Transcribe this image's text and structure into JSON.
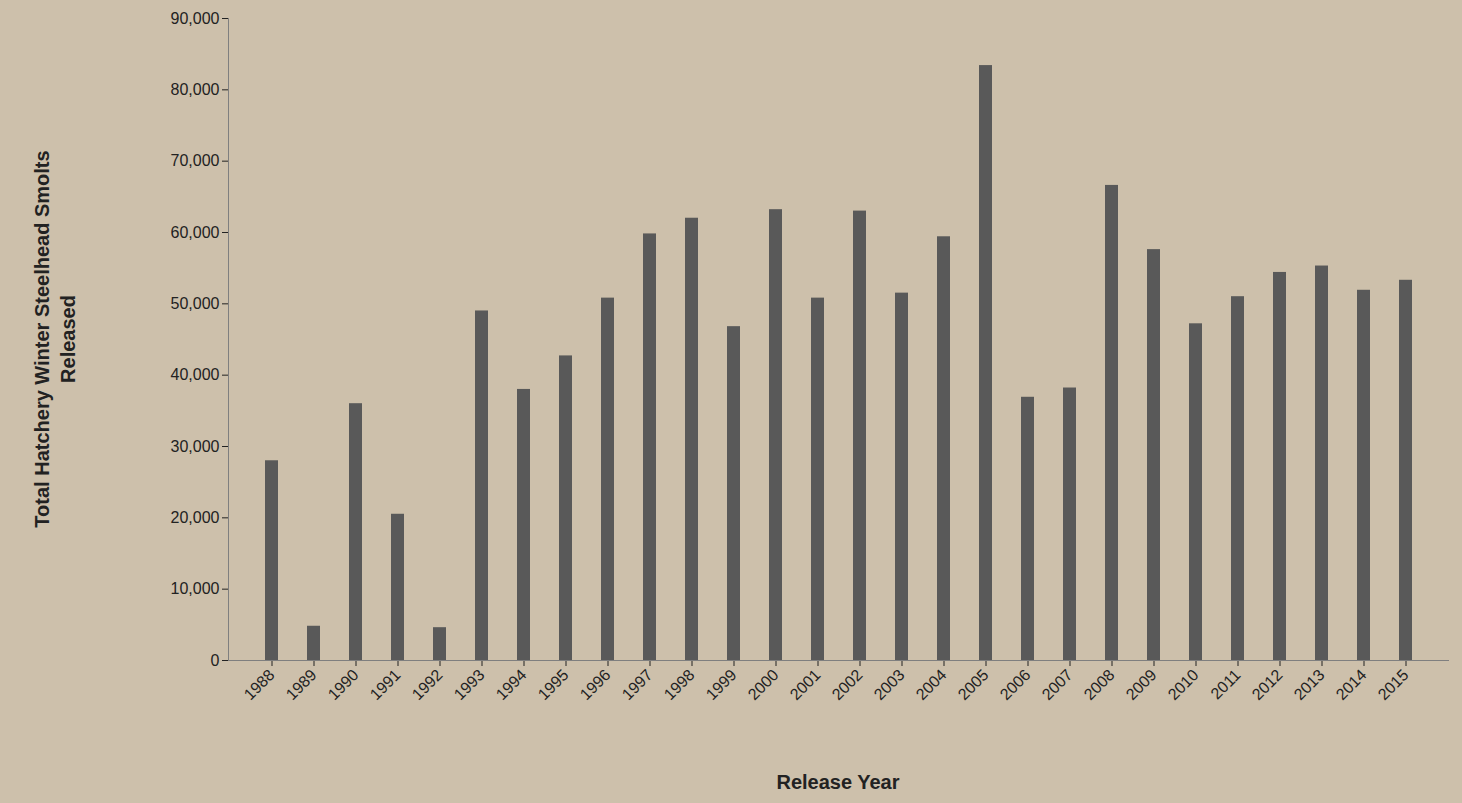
{
  "chart_data": {
    "type": "bar",
    "y_label": "Total Hatchery Winter Steelhead Smolts Released",
    "x_label": "Release Year",
    "categories": [
      "1988",
      "1989",
      "1990",
      "1991",
      "1992",
      "1993",
      "1994",
      "1995",
      "1996",
      "1997",
      "1998",
      "1999",
      "2000",
      "2001",
      "2002",
      "2003",
      "2004",
      "2005",
      "2006",
      "2007",
      "2008",
      "2009",
      "2010",
      "2011",
      "2012",
      "2013",
      "2014",
      "2015"
    ],
    "values": [
      28000,
      4800,
      36000,
      20500,
      4600,
      49000,
      38000,
      42700,
      50800,
      59800,
      62000,
      46800,
      63200,
      50800,
      63000,
      51500,
      59400,
      83400,
      36900,
      38200,
      66600,
      57600,
      47200,
      51000,
      54400,
      55300,
      51900,
      53300
    ],
    "color": "#595959",
    "ylim": [
      0,
      90000
    ],
    "yticks": [
      0,
      {
        "value": 10000,
        "label": "10,000"
      },
      {
        "value": 20000,
        "label": "20,000"
      },
      {
        "value": 30000,
        "label": "30,000"
      },
      {
        "value": 40000,
        "label": "40,000"
      },
      {
        "value": 50000,
        "label": "50,000"
      },
      {
        "value": 60000,
        "label": "60,000"
      },
      {
        "value": 70000,
        "label": "70,000"
      },
      {
        "value": 80000,
        "label": "80,000"
      },
      {
        "value": 90000,
        "label": "90,000"
      }
    ],
    "grid": false
  }
}
